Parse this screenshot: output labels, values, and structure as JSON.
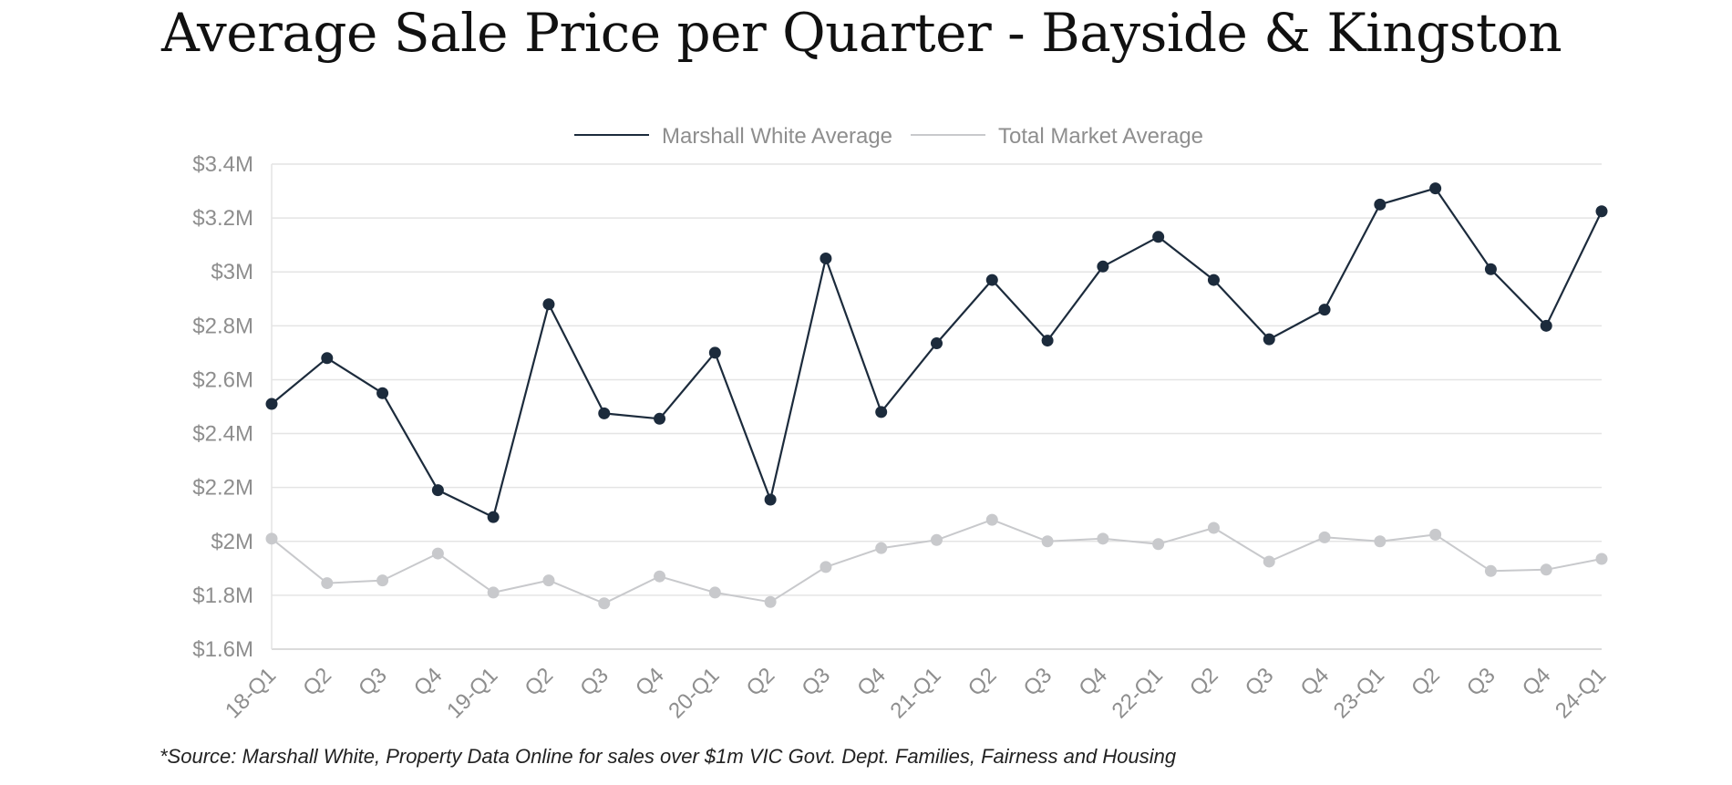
{
  "chart_data": {
    "type": "line",
    "title": "Average Sale Price per Quarter - Bayside & Kingston",
    "source": "*Source: Marshall White, Property Data Online for sales over $1m VIC Govt. Dept. Families, Fairness and Housing",
    "categories": [
      "18-Q1",
      "Q2",
      "Q3",
      "Q4",
      "19-Q1",
      "Q2",
      "Q3",
      "Q4",
      "20-Q1",
      "Q2",
      "Q3",
      "Q4",
      "21-Q1",
      "Q2",
      "Q3",
      "Q4",
      "22-Q1",
      "Q2",
      "Q3",
      "Q4",
      "23-Q1",
      "Q2",
      "Q3",
      "Q4",
      "24-Q1"
    ],
    "ylim": [
      1.6,
      3.4
    ],
    "yticks": [
      1.6,
      1.8,
      2.0,
      2.2,
      2.4,
      2.6,
      2.8,
      3.0,
      3.2,
      3.4
    ],
    "ytick_labels": [
      "$1.6M",
      "$1.8M",
      "$2M",
      "$2.2M",
      "$2.4M",
      "$2.6M",
      "$2.8M",
      "$3M",
      "$3.2M",
      "$3.4M"
    ],
    "grid": true,
    "legend_position": "top-center",
    "series": [
      {
        "name": "Marshall White Average",
        "color": "#1c2b3c",
        "values": [
          2.51,
          2.68,
          2.55,
          2.19,
          2.09,
          2.88,
          2.475,
          2.455,
          2.7,
          2.155,
          3.05,
          2.48,
          2.735,
          2.97,
          2.745,
          3.02,
          3.13,
          2.97,
          2.75,
          2.86,
          3.25,
          3.31,
          3.01,
          2.8,
          3.225
        ]
      },
      {
        "name": "Total Market Average",
        "color": "#c8c9cc",
        "values": [
          2.01,
          1.845,
          1.855,
          1.955,
          1.81,
          1.855,
          1.77,
          1.87,
          1.81,
          1.775,
          1.905,
          1.975,
          2.005,
          2.08,
          2.0,
          2.01,
          1.99,
          2.05,
          1.925,
          2.015,
          2.0,
          2.025,
          1.89,
          1.895,
          1.935
        ]
      }
    ]
  }
}
